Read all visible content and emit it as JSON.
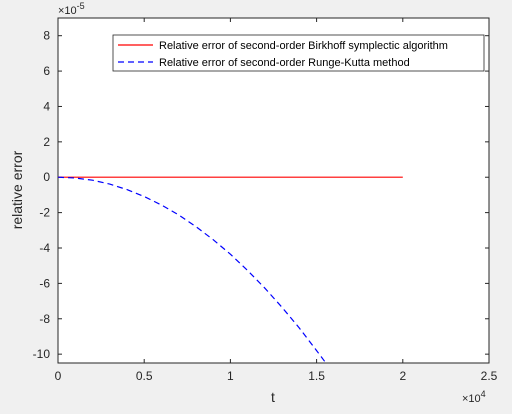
{
  "chart_data": {
    "type": "line",
    "title": "",
    "xlabel": "t",
    "ylabel": "relative error",
    "x_exponent_label": "×10^4",
    "y_exponent_label": "×10^-5",
    "xlim": [
      0,
      25000
    ],
    "ylim": [
      -0.000105,
      9e-05
    ],
    "x_ticks": [
      0,
      5000,
      10000,
      15000,
      20000,
      25000
    ],
    "x_tick_labels": [
      "0",
      "0.5",
      "1",
      "1.5",
      "2",
      "2.5"
    ],
    "y_ticks": [
      -0.0001,
      -8e-05,
      -6e-05,
      -4e-05,
      -2e-05,
      0,
      2e-05,
      4e-05,
      6e-05,
      8e-05
    ],
    "y_tick_labels": [
      "-10",
      "-8",
      "-6",
      "-4",
      "-2",
      "0",
      "2",
      "4",
      "6",
      "8"
    ],
    "grid": false,
    "legend_position": "top-right",
    "series": [
      {
        "name": "Relative error of second-order Birkhoff symplectic algorithm",
        "color": "#ff0000",
        "style": "solid",
        "x": [
          0,
          5000,
          10000,
          15000,
          20000
        ],
        "y": [
          0,
          0,
          0,
          0,
          0
        ]
      },
      {
        "name": "Relative error of second-order Runge-Kutta method",
        "color": "#0000ff",
        "style": "dashed",
        "x": [
          0,
          1000,
          2000,
          3000,
          4000,
          5000,
          6000,
          7000,
          8000,
          9000,
          10000,
          11000,
          12000,
          13000,
          14000,
          15000,
          15500
        ],
        "y": [
          0,
          -4.4e-07,
          -1.7e-06,
          -3.9e-06,
          -7e-06,
          -1.09e-05,
          -1.57e-05,
          -2.13e-05,
          -2.79e-05,
          -3.53e-05,
          -4.35e-05,
          -5.27e-05,
          -6.27e-05,
          -7.36e-05,
          -8.53e-05,
          -9.8e-05,
          -0.0001045
        ]
      }
    ]
  }
}
